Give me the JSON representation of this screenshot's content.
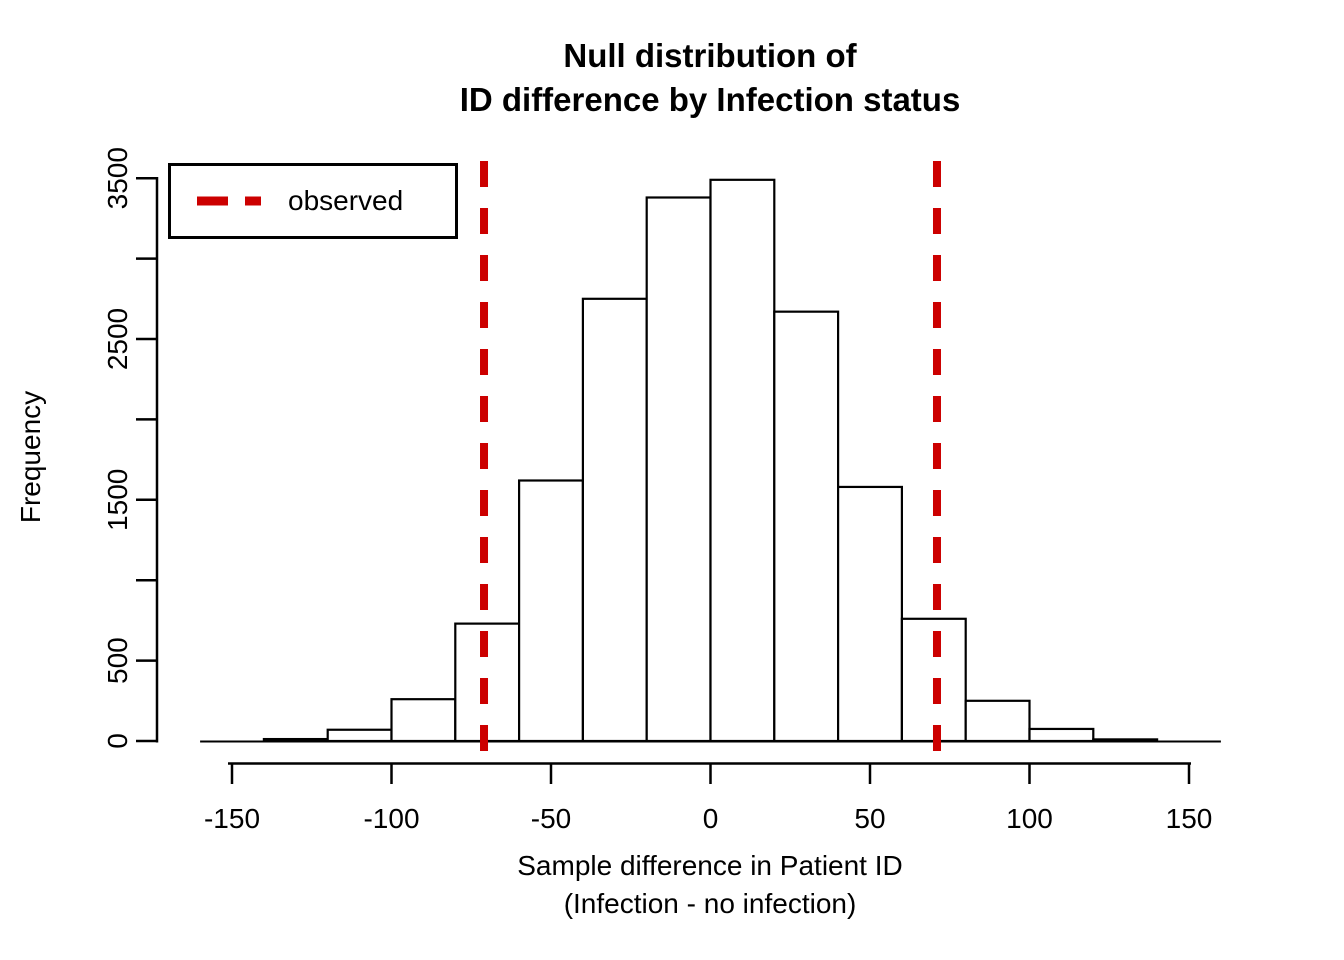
{
  "chart_data": {
    "type": "bar",
    "variant": "histogram",
    "title": [
      "Null distribution of",
      "ID difference by Infection status"
    ],
    "xlabel": [
      "Sample difference in Patient ID",
      "(Infection - no infection)"
    ],
    "ylabel": "Frequency",
    "grid": false,
    "xlim": [
      -160,
      160
    ],
    "ylim": [
      0,
      3500
    ],
    "bin_width": 20,
    "bins": [
      {
        "start": -140,
        "end": -120,
        "count": 12
      },
      {
        "start": -120,
        "end": -100,
        "count": 70
      },
      {
        "start": -100,
        "end": -80,
        "count": 260
      },
      {
        "start": -80,
        "end": -60,
        "count": 730
      },
      {
        "start": -60,
        "end": -40,
        "count": 1620
      },
      {
        "start": -40,
        "end": -20,
        "count": 2750
      },
      {
        "start": -20,
        "end": 0,
        "count": 3380
      },
      {
        "start": 0,
        "end": 20,
        "count": 3490
      },
      {
        "start": 20,
        "end": 40,
        "count": 2670
      },
      {
        "start": 40,
        "end": 60,
        "count": 1580
      },
      {
        "start": 60,
        "end": 80,
        "count": 760
      },
      {
        "start": 80,
        "end": 100,
        "count": 250
      },
      {
        "start": 100,
        "end": 120,
        "count": 75
      },
      {
        "start": 120,
        "end": 140,
        "count": 10
      }
    ],
    "observed_lines": [
      -71,
      71
    ],
    "x_ticks": [
      -150,
      -100,
      -50,
      0,
      50,
      100,
      150
    ],
    "y_ticks": [
      0,
      500,
      1000,
      1500,
      2000,
      2500,
      3000,
      3500
    ],
    "y_tick_labels_shown": [
      0,
      500,
      1500,
      2500,
      3500
    ],
    "legend": {
      "label": "observed",
      "position": "top-left",
      "line_style": "dashed"
    },
    "colors": {
      "bar_fill": "#ffffff",
      "bar_stroke": "#000000",
      "axis": "#000000",
      "text": "#000000",
      "observed_line": "#cc0000"
    }
  }
}
